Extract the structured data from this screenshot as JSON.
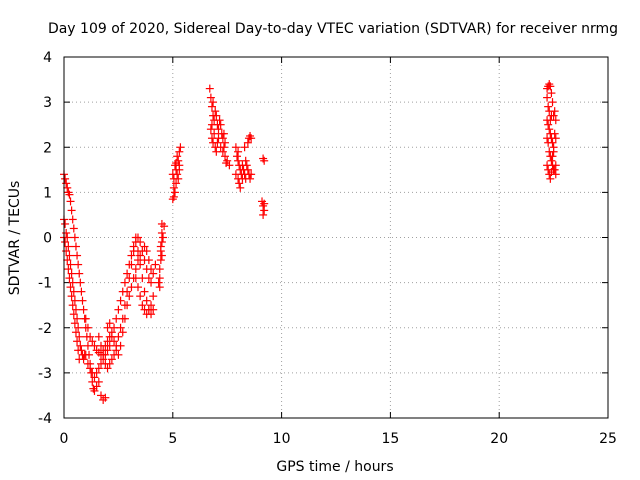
{
  "chart_data": {
    "type": "scatter",
    "title": "Day 109 of 2020, Sidereal Day-to-day VTEC variation (SDTVAR) for receiver nrmg",
    "xlabel": "GPS time / hours",
    "ylabel": "SDTVAR / TECUs",
    "xlim": [
      0,
      25
    ],
    "ylim": [
      -4,
      4
    ],
    "xticks": [
      0,
      5,
      10,
      15,
      20,
      25
    ],
    "yticks": [
      -4,
      -3,
      -2,
      -1,
      0,
      1,
      2,
      3,
      4
    ],
    "grid": true,
    "marker": "+",
    "color": "#ff0000",
    "series": [
      {
        "name": "SDTVAR",
        "points": [
          [
            0.0,
            1.4
          ],
          [
            0.05,
            1.3
          ],
          [
            0.1,
            1.2
          ],
          [
            0.15,
            1.1
          ],
          [
            0.2,
            1.0
          ],
          [
            0.25,
            0.95
          ],
          [
            0.3,
            0.8
          ],
          [
            0.35,
            0.6
          ],
          [
            0.4,
            0.4
          ],
          [
            0.45,
            0.2
          ],
          [
            0.5,
            0.0
          ],
          [
            0.55,
            -0.2
          ],
          [
            0.6,
            -0.4
          ],
          [
            0.65,
            -0.6
          ],
          [
            0.7,
            -0.8
          ],
          [
            0.75,
            -1.0
          ],
          [
            0.8,
            -1.2
          ],
          [
            0.85,
            -1.4
          ],
          [
            0.9,
            -1.6
          ],
          [
            0.95,
            -1.8
          ],
          [
            1.0,
            -2.0
          ],
          [
            1.05,
            -2.2
          ],
          [
            1.1,
            -2.4
          ],
          [
            1.15,
            -2.6
          ],
          [
            1.2,
            -2.8
          ],
          [
            1.25,
            -3.0
          ],
          [
            1.3,
            -3.2
          ],
          [
            1.35,
            -3.35
          ],
          [
            1.4,
            -3.4
          ],
          [
            1.5,
            -3.3
          ],
          [
            1.6,
            -3.2
          ],
          [
            1.7,
            -3.5
          ],
          [
            1.8,
            -3.6
          ],
          [
            1.9,
            -3.55
          ],
          [
            0.0,
            0.4
          ],
          [
            0.05,
            0.3
          ],
          [
            0.1,
            0.1
          ],
          [
            0.15,
            0.0
          ],
          [
            0.2,
            -0.2
          ],
          [
            0.25,
            -0.4
          ],
          [
            0.3,
            -0.6
          ],
          [
            0.35,
            -0.8
          ],
          [
            0.4,
            -1.0
          ],
          [
            0.45,
            -1.2
          ],
          [
            0.5,
            -1.4
          ],
          [
            0.55,
            -1.6
          ],
          [
            0.6,
            -1.8
          ],
          [
            0.65,
            -2.0
          ],
          [
            0.7,
            -2.2
          ],
          [
            0.75,
            -2.4
          ],
          [
            0.8,
            -2.5
          ],
          [
            0.85,
            -2.6
          ],
          [
            0.9,
            -2.7
          ],
          [
            0.95,
            -2.6
          ],
          [
            0.0,
            0.0
          ],
          [
            0.05,
            -0.1
          ],
          [
            0.1,
            -0.3
          ],
          [
            0.15,
            -0.5
          ],
          [
            0.2,
            -0.7
          ],
          [
            0.25,
            -0.9
          ],
          [
            0.3,
            -1.1
          ],
          [
            0.35,
            -1.3
          ],
          [
            0.4,
            -1.5
          ],
          [
            0.45,
            -1.7
          ],
          [
            0.5,
            -1.9
          ],
          [
            0.55,
            -2.1
          ],
          [
            0.6,
            -2.3
          ],
          [
            0.65,
            -2.5
          ],
          [
            0.7,
            -2.7
          ],
          [
            1.0,
            -1.8
          ],
          [
            1.1,
            -2.0
          ],
          [
            1.2,
            -2.2
          ],
          [
            1.3,
            -2.3
          ],
          [
            1.4,
            -2.4
          ],
          [
            1.5,
            -2.5
          ],
          [
            1.6,
            -2.55
          ],
          [
            1.7,
            -2.6
          ],
          [
            1.8,
            -2.5
          ],
          [
            1.9,
            -2.4
          ],
          [
            2.0,
            -2.3
          ],
          [
            2.1,
            -2.2
          ],
          [
            1.0,
            -2.6
          ],
          [
            1.1,
            -2.8
          ],
          [
            1.2,
            -2.9
          ],
          [
            1.3,
            -3.0
          ],
          [
            1.4,
            -3.1
          ],
          [
            1.5,
            -3.0
          ],
          [
            1.6,
            -2.9
          ],
          [
            1.7,
            -2.8
          ],
          [
            1.8,
            -2.7
          ],
          [
            1.9,
            -2.6
          ],
          [
            2.0,
            -2.5
          ],
          [
            2.1,
            -2.4
          ],
          [
            2.2,
            -2.2
          ],
          [
            2.3,
            -2.0
          ],
          [
            2.4,
            -1.8
          ],
          [
            2.5,
            -1.6
          ],
          [
            2.6,
            -1.4
          ],
          [
            2.7,
            -1.2
          ],
          [
            2.8,
            -1.0
          ],
          [
            2.9,
            -0.8
          ],
          [
            3.0,
            -0.6
          ],
          [
            3.1,
            -0.4
          ],
          [
            3.2,
            -0.2
          ],
          [
            3.3,
            0.0
          ],
          [
            1.6,
            -2.2
          ],
          [
            1.7,
            -2.4
          ],
          [
            1.8,
            -2.6
          ],
          [
            1.9,
            -2.8
          ],
          [
            2.0,
            -2.9
          ],
          [
            2.1,
            -2.8
          ],
          [
            2.2,
            -2.7
          ],
          [
            2.3,
            -2.6
          ],
          [
            2.4,
            -2.4
          ],
          [
            2.5,
            -2.2
          ],
          [
            2.6,
            -2.0
          ],
          [
            2.7,
            -1.8
          ],
          [
            2.8,
            -1.5
          ],
          [
            2.9,
            -1.2
          ],
          [
            3.0,
            -0.9
          ],
          [
            3.1,
            -0.6
          ],
          [
            3.2,
            -0.3
          ],
          [
            3.3,
            -0.1
          ],
          [
            3.4,
            0.0
          ],
          [
            3.5,
            -0.1
          ],
          [
            2.0,
            -2.0
          ],
          [
            2.1,
            -1.9
          ],
          [
            2.2,
            -2.1
          ],
          [
            2.3,
            -2.3
          ],
          [
            2.4,
            -2.5
          ],
          [
            2.5,
            -2.6
          ],
          [
            2.6,
            -2.4
          ],
          [
            2.7,
            -2.1
          ],
          [
            2.8,
            -1.8
          ],
          [
            2.9,
            -1.5
          ],
          [
            3.0,
            -1.3
          ],
          [
            3.1,
            -1.1
          ],
          [
            3.2,
            -0.9
          ],
          [
            3.3,
            -0.7
          ],
          [
            3.4,
            -0.5
          ],
          [
            3.5,
            -0.4
          ],
          [
            3.3,
            -0.9
          ],
          [
            3.4,
            -1.1
          ],
          [
            3.5,
            -1.3
          ],
          [
            3.6,
            -1.5
          ],
          [
            3.7,
            -1.6
          ],
          [
            3.8,
            -1.7
          ],
          [
            3.9,
            -1.6
          ],
          [
            4.0,
            -1.5
          ],
          [
            4.1,
            -1.3
          ],
          [
            3.4,
            -0.3
          ],
          [
            3.5,
            -0.6
          ],
          [
            3.6,
            -0.9
          ],
          [
            3.7,
            -1.2
          ],
          [
            3.8,
            -1.4
          ],
          [
            3.9,
            -1.6
          ],
          [
            4.0,
            -1.7
          ],
          [
            4.1,
            -1.6
          ],
          [
            3.6,
            -0.3
          ],
          [
            3.7,
            -0.5
          ],
          [
            3.8,
            -0.7
          ],
          [
            3.9,
            -0.9
          ],
          [
            4.0,
            -1.0
          ],
          [
            4.1,
            -0.8
          ],
          [
            4.2,
            -0.6
          ],
          [
            3.7,
            -0.2
          ],
          [
            3.8,
            -0.3
          ],
          [
            3.9,
            -0.5
          ],
          [
            4.0,
            -0.7
          ],
          [
            4.5,
            0.3
          ],
          [
            4.5,
            0.1
          ],
          [
            4.5,
            -0.1
          ],
          [
            4.45,
            -0.3
          ],
          [
            4.45,
            -0.5
          ],
          [
            4.4,
            -0.7
          ],
          [
            4.4,
            -0.9
          ],
          [
            4.4,
            -1.1
          ],
          [
            4.45,
            -0.2
          ],
          [
            4.5,
            -0.4
          ],
          [
            4.35,
            -1.0
          ],
          [
            4.6,
            0.25
          ],
          [
            4.55,
            0.0
          ],
          [
            5.0,
            1.4
          ],
          [
            5.05,
            1.3
          ],
          [
            5.1,
            1.6
          ],
          [
            5.15,
            1.5
          ],
          [
            5.2,
            1.8
          ],
          [
            5.25,
            1.7
          ],
          [
            5.3,
            1.9
          ],
          [
            5.35,
            2.0
          ],
          [
            5.05,
            1.1
          ],
          [
            5.1,
            1.0
          ],
          [
            5.15,
            1.2
          ],
          [
            5.2,
            1.4
          ],
          [
            5.25,
            1.3
          ],
          [
            5.3,
            1.5
          ],
          [
            5.0,
            0.85
          ],
          [
            5.05,
            0.9
          ],
          [
            5.15,
            1.65
          ],
          [
            5.3,
            1.6
          ],
          [
            6.7,
            3.3
          ],
          [
            6.75,
            3.1
          ],
          [
            6.8,
            2.9
          ],
          [
            6.85,
            3.0
          ],
          [
            6.8,
            2.5
          ],
          [
            6.85,
            2.7
          ],
          [
            6.9,
            2.6
          ],
          [
            6.95,
            2.8
          ],
          [
            7.0,
            2.7
          ],
          [
            7.05,
            2.5
          ],
          [
            7.1,
            2.4
          ],
          [
            7.15,
            2.6
          ],
          [
            7.2,
            2.5
          ],
          [
            7.25,
            2.3
          ],
          [
            7.3,
            2.2
          ],
          [
            7.35,
            2.3
          ],
          [
            7.4,
            2.1
          ],
          [
            6.75,
            2.4
          ],
          [
            6.8,
            2.2
          ],
          [
            6.85,
            2.1
          ],
          [
            6.9,
            2.3
          ],
          [
            6.95,
            2.0
          ],
          [
            7.0,
            1.9
          ],
          [
            7.05,
            2.1
          ],
          [
            7.1,
            2.2
          ],
          [
            7.2,
            2.0
          ],
          [
            7.3,
            1.9
          ],
          [
            7.4,
            1.8
          ],
          [
            7.5,
            1.7
          ],
          [
            7.6,
            1.6
          ],
          [
            7.45,
            1.65
          ],
          [
            7.35,
            2.0
          ],
          [
            7.9,
            2.0
          ],
          [
            7.95,
            1.8
          ],
          [
            8.0,
            1.7
          ],
          [
            8.05,
            1.6
          ],
          [
            8.1,
            1.5
          ],
          [
            8.15,
            1.4
          ],
          [
            8.2,
            1.3
          ],
          [
            8.0,
            1.9
          ],
          [
            8.05,
            1.2
          ],
          [
            8.1,
            1.1
          ],
          [
            8.2,
            1.6
          ],
          [
            8.25,
            1.5
          ],
          [
            8.3,
            1.4
          ],
          [
            8.35,
            1.7
          ],
          [
            8.4,
            1.6
          ],
          [
            8.45,
            1.5
          ],
          [
            8.5,
            1.4
          ],
          [
            8.55,
            1.3
          ],
          [
            8.6,
            1.4
          ],
          [
            8.3,
            2.0
          ],
          [
            8.35,
            1.3
          ],
          [
            8.45,
            2.1
          ],
          [
            8.5,
            2.2
          ],
          [
            8.55,
            2.25
          ],
          [
            8.6,
            2.2
          ],
          [
            7.9,
            1.4
          ],
          [
            8.0,
            1.3
          ],
          [
            9.15,
            1.75
          ],
          [
            9.2,
            1.7
          ],
          [
            9.1,
            0.8
          ],
          [
            9.15,
            0.7
          ],
          [
            9.2,
            0.6
          ],
          [
            9.15,
            0.5
          ],
          [
            9.2,
            0.75
          ],
          [
            22.2,
            3.3
          ],
          [
            22.25,
            3.35
          ],
          [
            22.3,
            3.4
          ],
          [
            22.35,
            3.35
          ],
          [
            22.4,
            3.2
          ],
          [
            22.2,
            3.1
          ],
          [
            22.25,
            2.9
          ],
          [
            22.3,
            2.8
          ],
          [
            22.45,
            3.0
          ],
          [
            22.4,
            2.7
          ],
          [
            22.35,
            2.6
          ],
          [
            22.5,
            2.7
          ],
          [
            22.55,
            2.8
          ],
          [
            22.6,
            2.6
          ],
          [
            22.25,
            2.5
          ],
          [
            22.3,
            2.4
          ],
          [
            22.35,
            2.3
          ],
          [
            22.2,
            2.2
          ],
          [
            22.25,
            2.1
          ],
          [
            22.4,
            2.2
          ],
          [
            22.45,
            2.1
          ],
          [
            22.5,
            2.0
          ],
          [
            22.55,
            2.3
          ],
          [
            22.6,
            2.2
          ],
          [
            22.3,
            1.9
          ],
          [
            22.35,
            1.8
          ],
          [
            22.4,
            1.7
          ],
          [
            22.45,
            1.6
          ],
          [
            22.5,
            1.5
          ],
          [
            22.2,
            1.6
          ],
          [
            22.25,
            1.5
          ],
          [
            22.3,
            1.4
          ],
          [
            22.35,
            1.3
          ],
          [
            22.55,
            1.5
          ],
          [
            22.6,
            1.4
          ],
          [
            22.45,
            1.8
          ],
          [
            22.5,
            1.9
          ],
          [
            22.2,
            2.6
          ],
          [
            22.4,
            1.45
          ],
          [
            22.6,
            1.6
          ]
        ]
      }
    ]
  }
}
